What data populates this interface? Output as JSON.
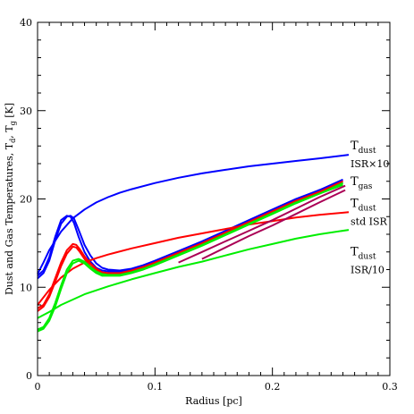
{
  "chart_data": {
    "type": "line",
    "title": "",
    "xlabel": "Radius [pc]",
    "ylabel": "Dust and Gas Temperatures, T",
    "ylabel_sub1": "d",
    "ylabel_mid": ", T",
    "ylabel_sub2": "g",
    "ylabel_tail": " [K]",
    "xlim": [
      0,
      0.3
    ],
    "ylim": [
      0,
      40
    ],
    "xticks": [
      0,
      0.1,
      0.2,
      0.3
    ],
    "xtick_labels": [
      "0",
      "0.1",
      "0.2",
      "0.3"
    ],
    "yticks": [
      0,
      10,
      20,
      30,
      40
    ],
    "ytick_labels": [
      "0",
      "10",
      "20",
      "30",
      "40"
    ],
    "grid": false,
    "series": [
      {
        "color": "#0000ff",
        "x": [
          0.0,
          0.005,
          0.01,
          0.02,
          0.03,
          0.04,
          0.05,
          0.06,
          0.07,
          0.08,
          0.1,
          0.12,
          0.14,
          0.16,
          0.18,
          0.2,
          0.22,
          0.24,
          0.265
        ],
        "y": [
          11.5,
          12.8,
          14.2,
          16.3,
          17.8,
          18.8,
          19.6,
          20.2,
          20.7,
          21.1,
          21.8,
          22.4,
          22.9,
          23.3,
          23.7,
          24.0,
          24.3,
          24.6,
          25.0
        ]
      },
      {
        "color": "#0000ff",
        "x": [
          0.0,
          0.005,
          0.01,
          0.015,
          0.02,
          0.025,
          0.028,
          0.031,
          0.035,
          0.04,
          0.045,
          0.05,
          0.055,
          0.06,
          0.07,
          0.08,
          0.09,
          0.1,
          0.12,
          0.14,
          0.16,
          0.18,
          0.2,
          0.22,
          0.24,
          0.26
        ],
        "y": [
          11.0,
          11.6,
          13.0,
          15.3,
          17.2,
          18.0,
          18.1,
          17.8,
          16.5,
          14.8,
          13.6,
          12.7,
          12.2,
          12.0,
          11.9,
          12.1,
          12.5,
          13.0,
          14.1,
          15.2,
          16.4,
          17.6,
          18.8,
          20.0,
          21.0,
          22.0
        ]
      },
      {
        "color": "#0000ff",
        "x": [
          0.0,
          0.005,
          0.01,
          0.015,
          0.02,
          0.025,
          0.028,
          0.031,
          0.035,
          0.04,
          0.045,
          0.05,
          0.055,
          0.06,
          0.07,
          0.08,
          0.09,
          0.1,
          0.12,
          0.14,
          0.16,
          0.18,
          0.2,
          0.22,
          0.24,
          0.26
        ],
        "y": [
          11.3,
          11.9,
          13.4,
          15.7,
          17.6,
          18.1,
          18.0,
          17.3,
          15.7,
          14.0,
          12.9,
          12.2,
          11.9,
          11.8,
          11.8,
          12.0,
          12.4,
          12.9,
          14.0,
          15.1,
          16.3,
          17.5,
          18.7,
          19.9,
          21.0,
          22.2
        ]
      },
      {
        "color": "#ff0000",
        "x": [
          0.0,
          0.01,
          0.02,
          0.03,
          0.04,
          0.05,
          0.06,
          0.08,
          0.1,
          0.12,
          0.14,
          0.16,
          0.18,
          0.2,
          0.22,
          0.24,
          0.265
        ],
        "y": [
          8.0,
          9.7,
          11.1,
          12.1,
          12.8,
          13.3,
          13.7,
          14.4,
          15.0,
          15.6,
          16.1,
          16.6,
          17.1,
          17.5,
          17.9,
          18.2,
          18.5
        ]
      },
      {
        "color": "#ff0000",
        "x": [
          0.0,
          0.005,
          0.01,
          0.015,
          0.02,
          0.025,
          0.03,
          0.033,
          0.036,
          0.04,
          0.045,
          0.05,
          0.055,
          0.06,
          0.07,
          0.08,
          0.09,
          0.1,
          0.12,
          0.14,
          0.16,
          0.18,
          0.2,
          0.22,
          0.24,
          0.26
        ],
        "y": [
          7.6,
          8.0,
          9.2,
          11.0,
          12.8,
          14.2,
          14.9,
          14.8,
          14.3,
          13.5,
          12.7,
          12.1,
          11.7,
          11.6,
          11.6,
          11.9,
          12.3,
          12.8,
          13.9,
          15.0,
          16.2,
          17.4,
          18.6,
          19.8,
          20.8,
          21.8
        ]
      },
      {
        "color": "#ff0000",
        "x": [
          0.0,
          0.005,
          0.01,
          0.015,
          0.02,
          0.025,
          0.03,
          0.033,
          0.036,
          0.04,
          0.045,
          0.05,
          0.055,
          0.06,
          0.07,
          0.08,
          0.09,
          0.1,
          0.12,
          0.14,
          0.16,
          0.18,
          0.2,
          0.22,
          0.24,
          0.26
        ],
        "y": [
          7.3,
          7.8,
          8.9,
          10.6,
          12.4,
          13.8,
          14.6,
          14.5,
          14.0,
          13.2,
          12.4,
          11.9,
          11.6,
          11.5,
          11.5,
          11.8,
          12.2,
          12.7,
          13.8,
          14.9,
          16.1,
          17.3,
          18.5,
          19.7,
          20.8,
          22.0
        ]
      },
      {
        "color": "#00ee00",
        "x": [
          0.0,
          0.01,
          0.02,
          0.04,
          0.06,
          0.08,
          0.1,
          0.12,
          0.14,
          0.16,
          0.18,
          0.2,
          0.22,
          0.24,
          0.265
        ],
        "y": [
          6.5,
          7.2,
          8.0,
          9.2,
          10.1,
          10.9,
          11.6,
          12.3,
          12.9,
          13.6,
          14.3,
          14.9,
          15.5,
          16.0,
          16.5
        ]
      },
      {
        "color": "#00ee00",
        "x": [
          0.0,
          0.005,
          0.01,
          0.015,
          0.02,
          0.025,
          0.03,
          0.035,
          0.04,
          0.045,
          0.05,
          0.055,
          0.06,
          0.07,
          0.08,
          0.09,
          0.1,
          0.12,
          0.14,
          0.16,
          0.18,
          0.2,
          0.22,
          0.24,
          0.26
        ],
        "y": [
          5.2,
          5.5,
          6.5,
          8.2,
          10.2,
          12.0,
          13.0,
          13.2,
          12.9,
          12.3,
          11.8,
          11.5,
          11.4,
          11.4,
          11.7,
          12.1,
          12.6,
          13.7,
          14.8,
          16.0,
          17.2,
          18.4,
          19.6,
          20.6,
          21.6
        ]
      },
      {
        "color": "#00ee00",
        "x": [
          0.0,
          0.005,
          0.01,
          0.015,
          0.02,
          0.025,
          0.03,
          0.035,
          0.04,
          0.045,
          0.05,
          0.055,
          0.06,
          0.07,
          0.08,
          0.09,
          0.1,
          0.12,
          0.14,
          0.16,
          0.18,
          0.2,
          0.22,
          0.24,
          0.26
        ],
        "y": [
          5.0,
          5.3,
          6.2,
          7.8,
          9.8,
          11.6,
          12.7,
          13.0,
          12.7,
          12.1,
          11.6,
          11.3,
          11.3,
          11.3,
          11.6,
          12.0,
          12.5,
          13.6,
          14.7,
          15.9,
          17.1,
          18.3,
          19.5,
          20.6,
          21.8
        ]
      },
      {
        "color": "#aa0055",
        "x": [
          0.12,
          0.14,
          0.16,
          0.18,
          0.2,
          0.22,
          0.24,
          0.262
        ],
        "y": [
          12.8,
          14.0,
          15.2,
          16.4,
          17.6,
          18.9,
          20.2,
          21.5
        ]
      },
      {
        "color": "#aa0055",
        "x": [
          0.14,
          0.16,
          0.18,
          0.2,
          0.22,
          0.24,
          0.262
        ],
        "y": [
          13.2,
          14.5,
          15.8,
          17.0,
          18.3,
          19.6,
          21.0
        ]
      }
    ],
    "annotations": [
      {
        "main": "T",
        "sub": "dust",
        "line2": "ISR×10",
        "x": 0.267,
        "y": 25.0
      },
      {
        "main": "T",
        "sub": "gas",
        "line2": "",
        "x": 0.267,
        "y": 22.0
      },
      {
        "main": "T",
        "sub": "dust",
        "line2": "std ISR",
        "x": 0.267,
        "y": 18.5
      },
      {
        "main": "T",
        "sub": "dust",
        "line2": "ISR/10",
        "x": 0.267,
        "y": 13.0
      }
    ]
  }
}
